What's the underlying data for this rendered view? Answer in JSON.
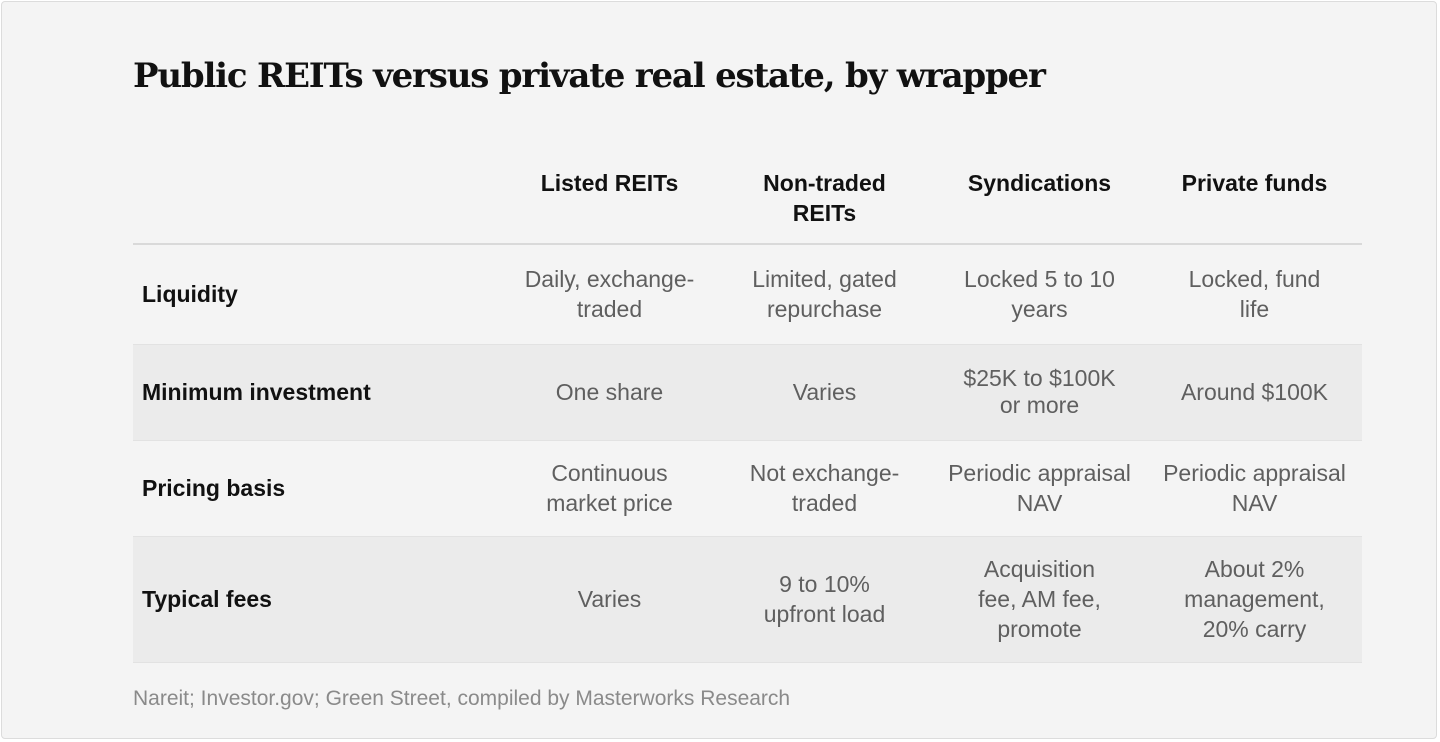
{
  "title": "Public REITs versus private real estate, by wrapper",
  "columns": [
    "Listed REITs",
    "Non-traded REITs",
    "Syndications",
    "Private funds"
  ],
  "rows": [
    {
      "label": "Liquidity",
      "cells": [
        "Daily, exchange-traded",
        "Limited, gated repurchase",
        "Locked 5 to 10 years",
        "Locked, fund life"
      ]
    },
    {
      "label": "Minimum investment",
      "cells": [
        "One share",
        "Varies",
        "$25K to $100K or more",
        "Around $100K"
      ]
    },
    {
      "label": "Pricing basis",
      "cells": [
        "Continuous market price",
        "Not exchange-traded",
        "Periodic appraisal NAV",
        "Periodic appraisal NAV"
      ]
    },
    {
      "label": "Typical fees",
      "cells": [
        "Varies",
        "9 to 10% upfront load",
        "Acquisition fee, AM fee, promote",
        "About 2% management, 20% carry"
      ]
    }
  ],
  "source": "Nareit; Investor.gov; Green Street, compiled by Masterworks Research",
  "colors": {
    "background": "#f4f4f4",
    "row_alt": "#ebebeb",
    "heading_text": "#111111",
    "cell_text": "#5f5f5f",
    "source_text": "#8a8a8a"
  }
}
